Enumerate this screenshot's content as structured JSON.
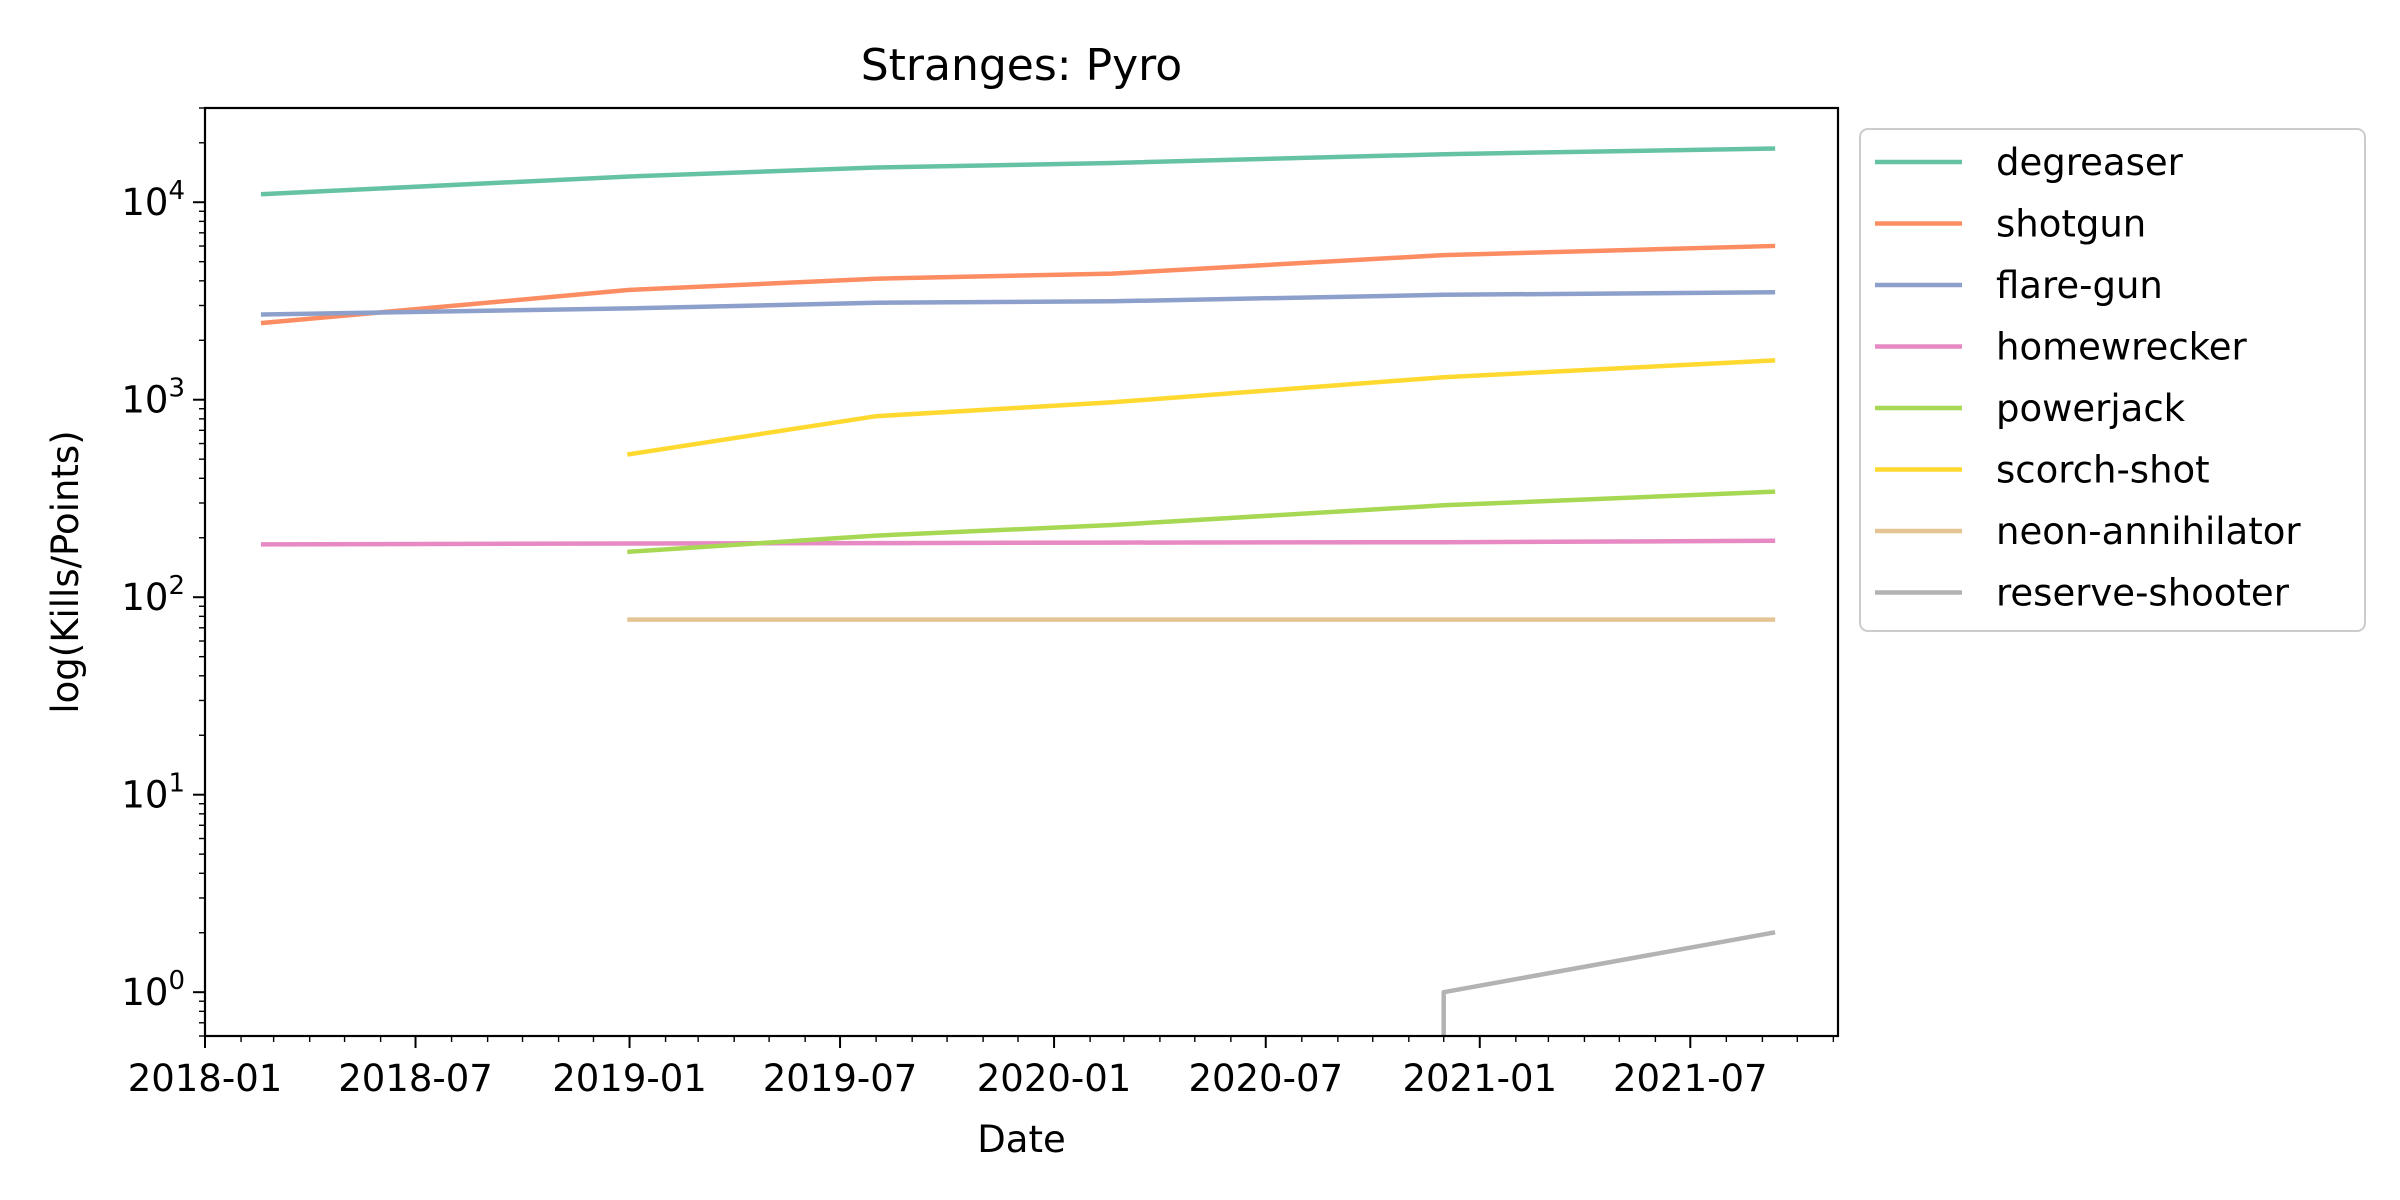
{
  "chart_data": {
    "type": "line",
    "title": "Stranges: Pyro",
    "xlabel": "Date",
    "ylabel": "log(Kills/Points)",
    "yscale": "log",
    "ylim": [
      0.6,
      30000
    ],
    "xlim": [
      "2018-01-01",
      "2021-11-05"
    ],
    "grid": false,
    "legend_position": "outside-right-top",
    "x_ticks": [
      "2018-01",
      "2018-07",
      "2019-01",
      "2019-07",
      "2020-01",
      "2020-07",
      "2021-01",
      "2021-07"
    ],
    "y_ticks": [
      {
        "value": 1,
        "base": "10",
        "exp": "0"
      },
      {
        "value": 10,
        "base": "10",
        "exp": "1"
      },
      {
        "value": 100,
        "base": "10",
        "exp": "2"
      },
      {
        "value": 1000,
        "base": "10",
        "exp": "3"
      },
      {
        "value": 10000,
        "base": "10",
        "exp": "4"
      }
    ],
    "series": [
      {
        "name": "degreaser",
        "color": "#66c2a5",
        "points": [
          {
            "x": "2018-02-20",
            "y": 11000
          },
          {
            "x": "2019-01-01",
            "y": 13500
          },
          {
            "x": "2019-08-01",
            "y": 15000
          },
          {
            "x": "2020-02-20",
            "y": 15800
          },
          {
            "x": "2020-12-01",
            "y": 17500
          },
          {
            "x": "2021-09-10",
            "y": 18700
          }
        ]
      },
      {
        "name": "shotgun",
        "color": "#fc8d62",
        "points": [
          {
            "x": "2018-02-20",
            "y": 2450
          },
          {
            "x": "2019-01-01",
            "y": 3600
          },
          {
            "x": "2019-08-01",
            "y": 4100
          },
          {
            "x": "2020-02-20",
            "y": 4350
          },
          {
            "x": "2020-12-01",
            "y": 5400
          },
          {
            "x": "2021-09-10",
            "y": 6000
          }
        ]
      },
      {
        "name": "flare-gun",
        "color": "#8da0cb",
        "points": [
          {
            "x": "2018-02-20",
            "y": 2700
          },
          {
            "x": "2019-01-01",
            "y": 2900
          },
          {
            "x": "2019-08-01",
            "y": 3100
          },
          {
            "x": "2020-02-20",
            "y": 3150
          },
          {
            "x": "2020-12-01",
            "y": 3400
          },
          {
            "x": "2021-09-10",
            "y": 3500
          }
        ]
      },
      {
        "name": "homewrecker",
        "color": "#e78ac3",
        "points": [
          {
            "x": "2018-02-20",
            "y": 185
          },
          {
            "x": "2019-01-01",
            "y": 187
          },
          {
            "x": "2019-08-01",
            "y": 188
          },
          {
            "x": "2020-02-20",
            "y": 189
          },
          {
            "x": "2020-12-01",
            "y": 190
          },
          {
            "x": "2021-09-10",
            "y": 193
          }
        ]
      },
      {
        "name": "powerjack",
        "color": "#a6d854",
        "points": [
          {
            "x": "2019-01-01",
            "y": 170
          },
          {
            "x": "2019-08-01",
            "y": 205
          },
          {
            "x": "2020-02-20",
            "y": 232
          },
          {
            "x": "2020-12-01",
            "y": 292
          },
          {
            "x": "2021-09-10",
            "y": 342
          }
        ]
      },
      {
        "name": "scorch-shot",
        "color": "#ffd92f",
        "points": [
          {
            "x": "2019-01-01",
            "y": 530
          },
          {
            "x": "2019-08-01",
            "y": 825
          },
          {
            "x": "2020-02-20",
            "y": 970
          },
          {
            "x": "2020-12-01",
            "y": 1300
          },
          {
            "x": "2021-09-10",
            "y": 1580
          }
        ]
      },
      {
        "name": "neon-annihilator",
        "color": "#e5c494",
        "points": [
          {
            "x": "2019-01-01",
            "y": 77
          },
          {
            "x": "2019-08-01",
            "y": 77
          },
          {
            "x": "2020-02-20",
            "y": 77
          },
          {
            "x": "2020-12-01",
            "y": 77
          },
          {
            "x": "2021-09-10",
            "y": 77
          }
        ]
      },
      {
        "name": "reserve-shooter",
        "color": "#b3b3b3",
        "points": [
          {
            "x": "2020-12-01",
            "y": 0
          },
          {
            "x": "2020-12-01",
            "y": 1
          },
          {
            "x": "2021-09-10",
            "y": 2
          }
        ]
      }
    ]
  }
}
